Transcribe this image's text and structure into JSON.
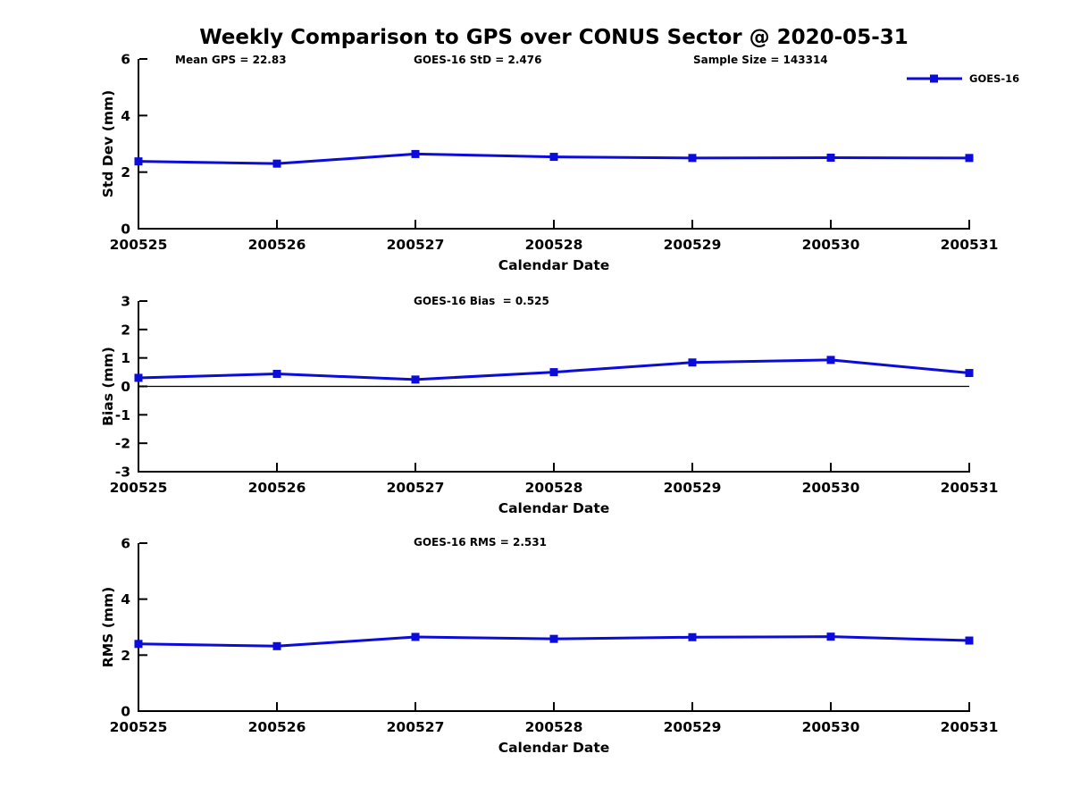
{
  "chart_data": [
    {
      "type": "line",
      "title": "Weekly Comparison to GPS over CONUS Sector @ 2020-05-31",
      "annotations": [
        "Mean GPS = 22.83",
        "GOES-16 StD = 2.476",
        "Sample Size = 143314"
      ],
      "x": [
        "200525",
        "200526",
        "200527",
        "200528",
        "200529",
        "200530",
        "200531"
      ],
      "xlabel": "Calendar Date",
      "ylabel": "Std Dev (mm)",
      "ylim": [
        0,
        6
      ],
      "yticks": [
        0,
        2,
        4,
        6
      ],
      "grid": false,
      "legend": {
        "entries": [
          "GOES-16"
        ],
        "position": "top-right"
      },
      "series": [
        {
          "name": "GOES-16",
          "marker": "square",
          "values": [
            2.38,
            2.3,
            2.64,
            2.54,
            2.5,
            2.51,
            2.5
          ]
        }
      ]
    },
    {
      "type": "line",
      "annotation": "GOES-16 Bias  = 0.525",
      "x": [
        "200525",
        "200526",
        "200527",
        "200528",
        "200529",
        "200530",
        "200531"
      ],
      "xlabel": "Calendar Date",
      "ylabel": "Bias (mm)",
      "ylim": [
        -3,
        3
      ],
      "yticks": [
        3,
        2,
        1,
        0,
        -1,
        -2,
        -3
      ],
      "zero_line": true,
      "grid": false,
      "series": [
        {
          "name": "GOES-16",
          "marker": "square",
          "values": [
            0.3,
            0.44,
            0.24,
            0.5,
            0.84,
            0.93,
            0.47
          ]
        }
      ]
    },
    {
      "type": "line",
      "annotation": "GOES-16 RMS = 2.531",
      "x": [
        "200525",
        "200526",
        "200527",
        "200528",
        "200529",
        "200530",
        "200531"
      ],
      "xlabel": "Calendar Date",
      "ylabel": "RMS (mm)",
      "ylim": [
        0,
        6
      ],
      "yticks": [
        0,
        2,
        4,
        6
      ],
      "grid": false,
      "series": [
        {
          "name": "GOES-16",
          "marker": "square",
          "values": [
            2.4,
            2.32,
            2.65,
            2.58,
            2.64,
            2.66,
            2.52
          ]
        }
      ]
    }
  ],
  "colors": {
    "series": "#0b0bdb",
    "axis": "#000000",
    "background": "#ffffff"
  }
}
